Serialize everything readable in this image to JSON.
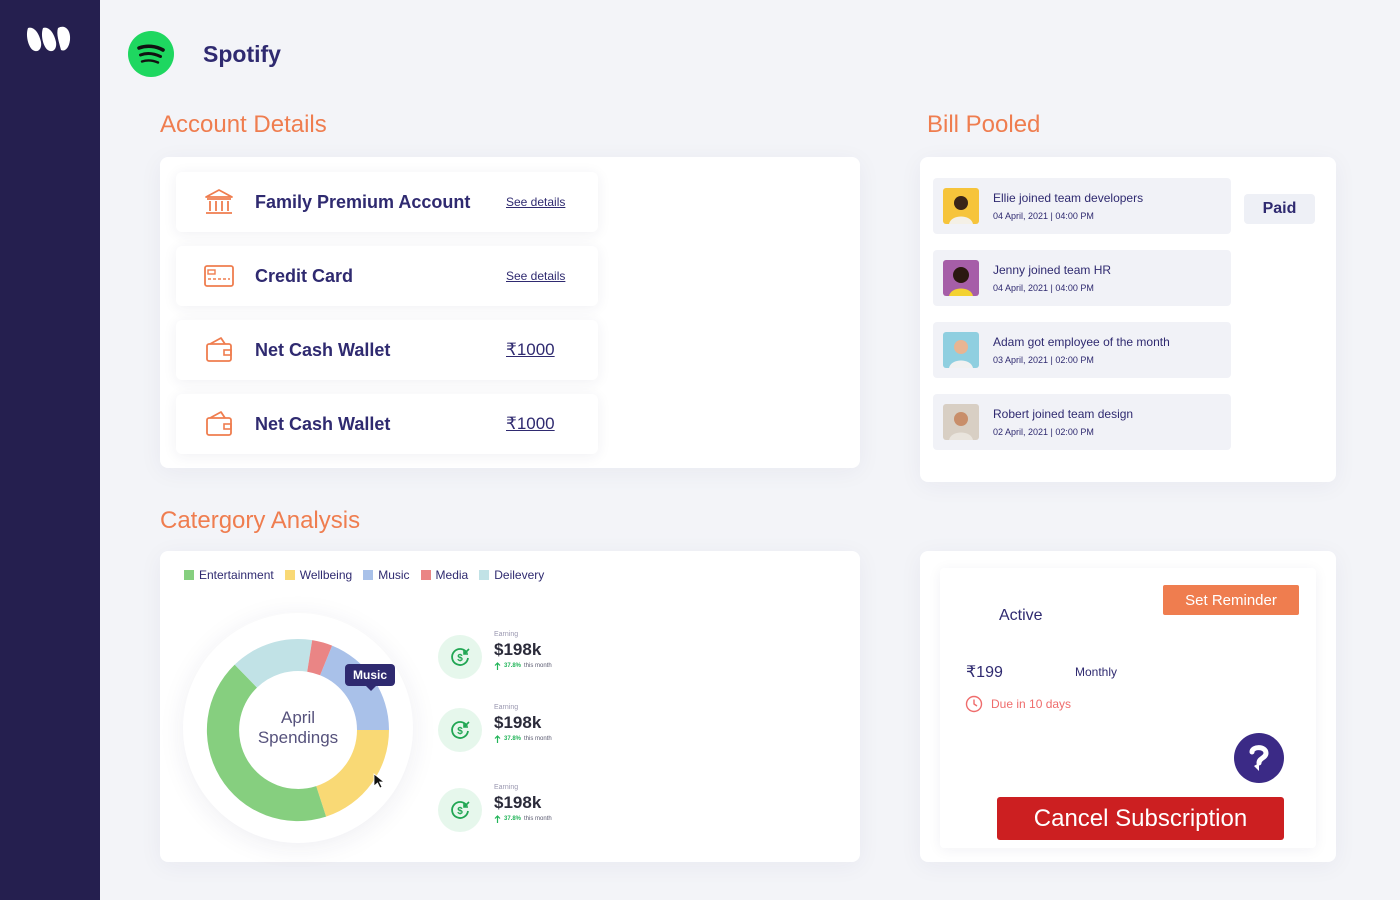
{
  "app": {
    "title": "Spotify"
  },
  "account_details": {
    "title": "Account Details",
    "items": [
      {
        "icon": "bank-icon",
        "label": "Family Premium Account",
        "link": "See details"
      },
      {
        "icon": "credit-card-icon",
        "label": "Credit Card",
        "link": "See details"
      },
      {
        "icon": "wallet-icon",
        "label": "Net Cash Wallet",
        "amount": "₹1000"
      },
      {
        "icon": "wallet-icon",
        "label": "Net Cash Wallet",
        "amount": "₹1000"
      }
    ]
  },
  "bill_pooled": {
    "title": "Bill Pooled",
    "status": "Paid",
    "items": [
      {
        "title": "Ellie joined team developers",
        "time": "04 April, 2021 | 04:00 PM"
      },
      {
        "title": "Jenny joined team HR",
        "time": "04 April, 2021 | 04:00 PM"
      },
      {
        "title": "Adam got employee of the month",
        "time": "03 April, 2021 | 02:00 PM"
      },
      {
        "title": "Robert joined team design",
        "time": "02 April, 2021 | 02:00 PM"
      }
    ]
  },
  "category_analysis": {
    "title": "Catergory Analysis",
    "legend": [
      {
        "label": "Entertainment",
        "color": "#86cf7f"
      },
      {
        "label": "Wellbeing",
        "color": "#f9d975"
      },
      {
        "label": "Music",
        "color": "#a9c1e9"
      },
      {
        "label": "Media",
        "color": "#ea8585"
      },
      {
        "label": "Deilevery",
        "color": "#c1e2e6"
      }
    ],
    "center_line1": "April",
    "center_line2": "Spendings",
    "tooltip": "Music",
    "earnings": [
      {
        "caption": "Earning",
        "value": "$198k",
        "percent": "37.8%",
        "suffix": "this month"
      },
      {
        "caption": "Earning",
        "value": "$198k",
        "percent": "37.8%",
        "suffix": "this month"
      },
      {
        "caption": "Earning",
        "value": "$198k",
        "percent": "37.8%",
        "suffix": "this month"
      }
    ]
  },
  "subscription": {
    "status": "Active",
    "reminder_label": "Set Reminder",
    "price": "₹199",
    "period": "Monthly",
    "due": "Due in 10 days",
    "cancel_label": "Cancel Subscription"
  }
}
